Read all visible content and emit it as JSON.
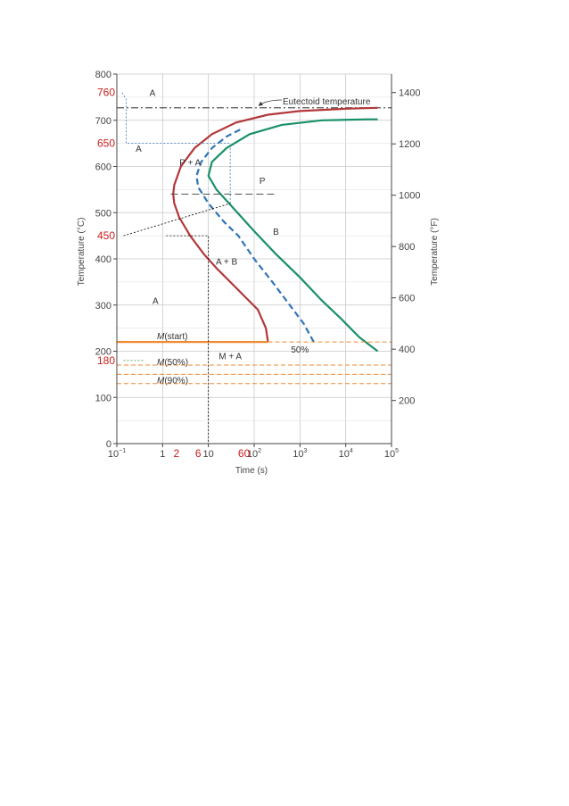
{
  "chart_data": {
    "type": "line",
    "x_scale": "log",
    "xlim": [
      0.1,
      100000
    ],
    "ylim": [
      0,
      800
    ],
    "y2lim_F": [
      32,
      1472
    ],
    "grid": true,
    "xlabel": "Time (s)",
    "ylabel": "Temperature (°C)",
    "ylabel_right": "Temperature (°F)",
    "x_ticks": [
      {
        "value": 0.1,
        "base": "10",
        "exp": "−1"
      },
      {
        "value": 1,
        "base": "1",
        "exp": ""
      },
      {
        "value": 10,
        "base": "10",
        "exp": ""
      },
      {
        "value": 100,
        "base": "10",
        "exp": "2"
      },
      {
        "value": 1000,
        "base": "10",
        "exp": "3"
      },
      {
        "value": 10000,
        "base": "10",
        "exp": "4"
      },
      {
        "value": 100000,
        "base": "10",
        "exp": "5"
      }
    ],
    "y_ticks": [
      "0",
      "100",
      "200",
      "300",
      "400",
      "500",
      "600",
      "700",
      "800"
    ],
    "y2_ticks": [
      "200",
      "400",
      "600",
      "800",
      "1000",
      "1200",
      "1400"
    ],
    "colors": {
      "start": "#b3373a",
      "fifty": "#2f74b9",
      "finish": "#1a9068",
      "martensite": "#ef8a30",
      "eutectoid": "#555555",
      "annotation_text": "#c81e1e",
      "axis": "#444444",
      "grid": "#c8c8c8"
    },
    "eutectoid": {
      "temp": 727,
      "label": "Eutectoid temperature"
    },
    "series": [
      {
        "key": "start",
        "points": [
          [
            200,
            220
          ],
          [
            180,
            250
          ],
          [
            120,
            290
          ],
          [
            60,
            320
          ],
          [
            30,
            350
          ],
          [
            15,
            380
          ],
          [
            8,
            410
          ],
          [
            4,
            450
          ],
          [
            2.3,
            490
          ],
          [
            1.8,
            520
          ],
          [
            1.7,
            540
          ],
          [
            1.8,
            560
          ],
          [
            2.5,
            600
          ],
          [
            5,
            640
          ],
          [
            12,
            670
          ],
          [
            40,
            695
          ],
          [
            200,
            712
          ],
          [
            1000,
            720
          ],
          [
            10000,
            725
          ],
          [
            50000,
            727
          ]
        ]
      },
      {
        "key": "fifty",
        "points": [
          [
            2000,
            220
          ],
          [
            1200,
            260
          ],
          [
            600,
            300
          ],
          [
            250,
            350
          ],
          [
            100,
            400
          ],
          [
            45,
            450
          ],
          [
            22,
            480
          ],
          [
            10,
            520
          ],
          [
            6,
            555
          ],
          [
            5.5,
            580
          ],
          [
            7,
            610
          ],
          [
            12,
            640
          ],
          [
            25,
            665
          ],
          [
            50,
            680
          ]
        ]
      },
      {
        "key": "finish",
        "points": [
          [
            50000,
            200
          ],
          [
            20000,
            230
          ],
          [
            8000,
            270
          ],
          [
            3000,
            310
          ],
          [
            1000,
            360
          ],
          [
            300,
            410
          ],
          [
            100,
            460
          ],
          [
            35,
            510
          ],
          [
            15,
            550
          ],
          [
            10,
            580
          ],
          [
            12,
            610
          ],
          [
            25,
            640
          ],
          [
            80,
            670
          ],
          [
            400,
            690
          ],
          [
            3000,
            700
          ],
          [
            30000,
            702
          ],
          [
            50000,
            702
          ]
        ]
      }
    ],
    "martensite": {
      "M_start": 220,
      "M_50": 170,
      "M_90": 130
    },
    "region_labels": [
      {
        "text": "A",
        "t": 0.6,
        "T": 760
      },
      {
        "text": "A",
        "t": 0.3,
        "T": 640
      },
      {
        "text": "P + A",
        "t": 4,
        "T": 610
      },
      {
        "text": "P",
        "t": 150,
        "T": 570
      },
      {
        "text": "B",
        "t": 300,
        "T": 460
      },
      {
        "text": "A + B",
        "t": 25,
        "T": 395
      },
      {
        "text": "A",
        "t": 0.7,
        "T": 310
      },
      {
        "text": "M + A",
        "t": 30,
        "T": 190
      },
      {
        "text": "50%",
        "t": 1000,
        "T": 205
      }
    ],
    "curve_labels": {
      "m_start": "(start)",
      "m_50": "(50%)",
      "m_90": "(90%)",
      "m_letter": "M"
    },
    "annotations": {
      "temps": [
        "760",
        "650",
        "450",
        "180"
      ],
      "times": [
        "2",
        "6",
        "60"
      ]
    }
  }
}
